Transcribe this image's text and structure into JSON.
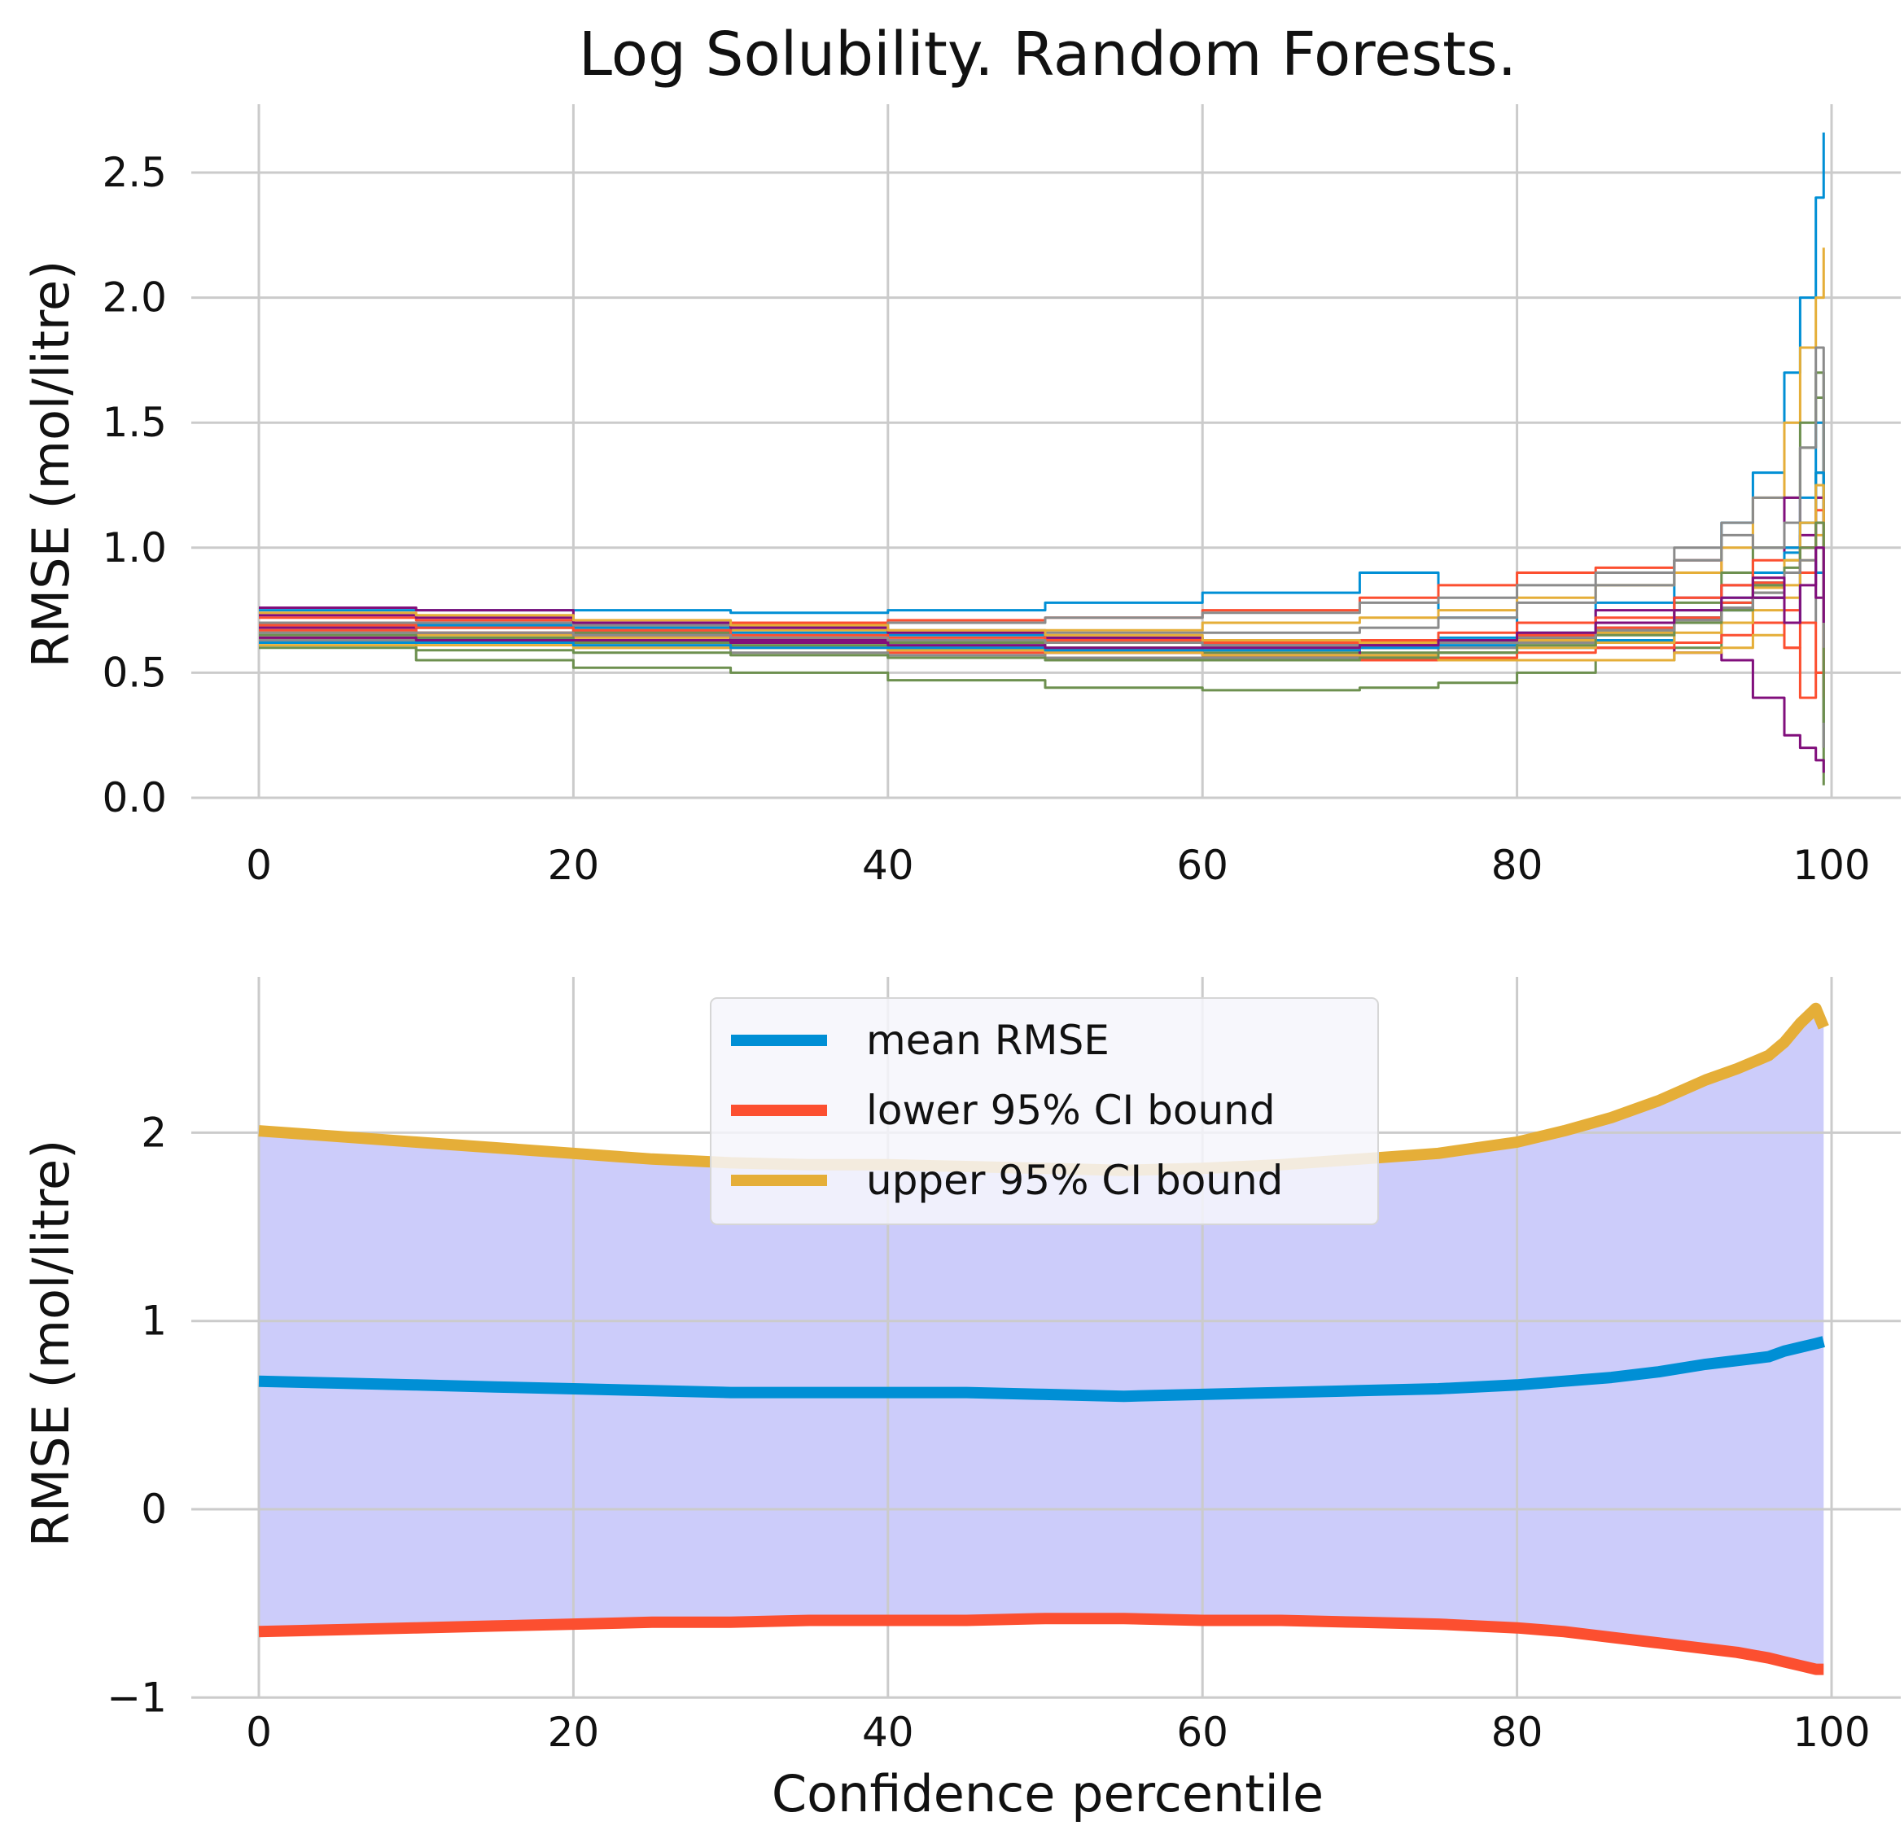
{
  "title": "Log Solubility. Random Forests.",
  "chart_data": [
    {
      "type": "line",
      "panel": "top",
      "xlabel": "",
      "ylabel": "RMSE (mol/litre)",
      "xlim": [
        -5,
        103
      ],
      "ylim": [
        -0.05,
        2.6
      ],
      "xticks": [
        0,
        20,
        40,
        60,
        80,
        100
      ],
      "yticks": [
        0.0,
        0.5,
        1.0,
        1.5,
        2.0,
        2.5
      ],
      "ytick_labels": [
        "0.0",
        "0.5",
        "1.0",
        "1.5",
        "2.0",
        "2.5"
      ],
      "grid": true,
      "legend": "none",
      "x": [
        0,
        10,
        20,
        30,
        40,
        50,
        60,
        70,
        75,
        80,
        85,
        90,
        93,
        95,
        97,
        98,
        99,
        99.5
      ],
      "series": [
        {
          "color": "#008fd5",
          "values": [
            0.75,
            0.75,
            0.75,
            0.74,
            0.75,
            0.78,
            0.82,
            0.9,
            0.72,
            0.7,
            0.78,
            0.95,
            1.1,
            1.3,
            1.7,
            2.0,
            2.4,
            2.66
          ]
        },
        {
          "color": "#fc4f30",
          "values": [
            0.72,
            0.71,
            0.7,
            0.7,
            0.71,
            0.72,
            0.75,
            0.8,
            0.85,
            0.9,
            0.92,
            0.95,
            0.9,
            0.8,
            0.6,
            0.4,
            0.5,
            0.3
          ]
        },
        {
          "color": "#e5ae38",
          "values": [
            0.7,
            0.69,
            0.68,
            0.67,
            0.66,
            0.67,
            0.7,
            0.72,
            0.75,
            0.8,
            0.85,
            0.9,
            1.0,
            1.2,
            1.5,
            1.8,
            2.0,
            2.2
          ]
        },
        {
          "color": "#6d904f",
          "values": [
            0.62,
            0.55,
            0.52,
            0.5,
            0.47,
            0.44,
            0.43,
            0.44,
            0.46,
            0.5,
            0.55,
            0.6,
            0.7,
            0.8,
            1.0,
            1.4,
            1.6,
            0.05
          ]
        },
        {
          "color": "#8b8b8b",
          "values": [
            0.68,
            0.68,
            0.67,
            0.68,
            0.7,
            0.72,
            0.74,
            0.78,
            0.8,
            0.85,
            0.9,
            1.0,
            1.1,
            1.2,
            1.0,
            0.7,
            1.3,
            0.3
          ]
        },
        {
          "color": "#810f7c",
          "values": [
            0.76,
            0.75,
            0.66,
            0.64,
            0.63,
            0.62,
            0.61,
            0.6,
            0.62,
            0.65,
            0.6,
            0.58,
            0.55,
            0.4,
            0.25,
            0.2,
            0.15,
            0.1
          ]
        },
        {
          "color": "#008fd5",
          "values": [
            0.66,
            0.64,
            0.62,
            0.6,
            0.56,
            0.55,
            0.56,
            0.57,
            0.58,
            0.6,
            0.63,
            0.7,
            0.75,
            0.8,
            1.0,
            1.2,
            1.5,
            0.4
          ]
        },
        {
          "color": "#fc4f30",
          "values": [
            0.64,
            0.63,
            0.62,
            0.6,
            0.58,
            0.56,
            0.55,
            0.55,
            0.56,
            0.58,
            0.6,
            0.62,
            0.65,
            0.7,
            0.75,
            0.9,
            1.1,
            0.6
          ]
        },
        {
          "color": "#e5ae38",
          "values": [
            0.66,
            0.65,
            0.64,
            0.62,
            0.6,
            0.58,
            0.57,
            0.56,
            0.55,
            0.55,
            0.55,
            0.58,
            0.6,
            0.65,
            0.8,
            1.0,
            1.2,
            0.7
          ]
        },
        {
          "color": "#6d904f",
          "values": [
            0.7,
            0.68,
            0.66,
            0.64,
            0.62,
            0.6,
            0.58,
            0.58,
            0.6,
            0.64,
            0.7,
            0.78,
            0.9,
            1.0,
            1.2,
            1.5,
            1.7,
            0.2
          ]
        },
        {
          "color": "#8b8b8b",
          "values": [
            0.63,
            0.62,
            0.6,
            0.58,
            0.57,
            0.56,
            0.56,
            0.57,
            0.6,
            0.62,
            0.66,
            0.7,
            0.75,
            0.85,
            0.9,
            1.0,
            1.1,
            0.5
          ]
        },
        {
          "color": "#810f7c",
          "values": [
            0.68,
            0.66,
            0.65,
            0.63,
            0.6,
            0.58,
            0.57,
            0.6,
            0.63,
            0.7,
            0.75,
            0.8,
            0.85,
            0.9,
            1.2,
            1.0,
            0.8,
            0.9
          ]
        },
        {
          "color": "#008fd5",
          "values": [
            0.7,
            0.69,
            0.68,
            0.66,
            0.65,
            0.64,
            0.63,
            0.63,
            0.64,
            0.66,
            0.7,
            0.75,
            0.8,
            0.9,
            0.7,
            1.1,
            0.9,
            1.0
          ]
        },
        {
          "color": "#fc4f30",
          "values": [
            0.67,
            0.66,
            0.65,
            0.64,
            0.63,
            0.62,
            0.62,
            0.63,
            0.66,
            0.7,
            0.72,
            0.8,
            0.85,
            0.95,
            0.6,
            0.7,
            0.5,
            0.8
          ]
        },
        {
          "color": "#e5ae38",
          "values": [
            0.61,
            0.61,
            0.6,
            0.6,
            0.59,
            0.58,
            0.57,
            0.57,
            0.58,
            0.6,
            0.62,
            0.66,
            0.7,
            0.75,
            0.85,
            0.95,
            1.05,
            0.6
          ]
        },
        {
          "color": "#6d904f",
          "values": [
            0.65,
            0.64,
            0.62,
            0.61,
            0.6,
            0.6,
            0.6,
            0.6,
            0.62,
            0.64,
            0.68,
            0.72,
            0.78,
            0.85,
            0.95,
            1.1,
            1.3,
            0.5
          ]
        },
        {
          "color": "#8b8b8b",
          "values": [
            0.7,
            0.7,
            0.69,
            0.68,
            0.67,
            0.66,
            0.66,
            0.68,
            0.72,
            0.78,
            0.85,
            0.95,
            1.05,
            1.0,
            1.1,
            1.4,
            1.8,
            0.2
          ]
        },
        {
          "color": "#810f7c",
          "values": [
            0.73,
            0.72,
            0.7,
            0.68,
            0.66,
            0.64,
            0.62,
            0.61,
            0.62,
            0.64,
            0.68,
            0.72,
            0.76,
            0.8,
            0.9,
            1.05,
            1.2,
            0.8
          ]
        },
        {
          "color": "#008fd5",
          "values": [
            0.62,
            0.62,
            0.61,
            0.6,
            0.6,
            0.59,
            0.59,
            0.6,
            0.61,
            0.63,
            0.67,
            0.72,
            0.78,
            0.86,
            0.98,
            1.1,
            1.3,
            0.7
          ]
        },
        {
          "color": "#fc4f30",
          "values": [
            0.69,
            0.68,
            0.67,
            0.65,
            0.64,
            0.63,
            0.62,
            0.62,
            0.63,
            0.65,
            0.68,
            0.72,
            0.78,
            0.86,
            0.9,
            1.0,
            1.15,
            0.4
          ]
        },
        {
          "color": "#e5ae38",
          "values": [
            0.74,
            0.73,
            0.71,
            0.69,
            0.67,
            0.65,
            0.63,
            0.62,
            0.62,
            0.63,
            0.66,
            0.7,
            0.76,
            0.84,
            0.95,
            1.1,
            1.25,
            0.9
          ]
        },
        {
          "color": "#6d904f",
          "values": [
            0.6,
            0.59,
            0.58,
            0.57,
            0.56,
            0.55,
            0.55,
            0.56,
            0.58,
            0.61,
            0.65,
            0.7,
            0.75,
            0.82,
            0.92,
            1.0,
            1.1,
            0.3
          ]
        },
        {
          "color": "#8b8b8b",
          "values": [
            0.66,
            0.66,
            0.65,
            0.64,
            0.63,
            0.62,
            0.61,
            0.61,
            0.62,
            0.64,
            0.67,
            0.71,
            0.76,
            0.82,
            0.9,
            0.95,
            1.0,
            0.6
          ]
        },
        {
          "color": "#810f7c",
          "values": [
            0.64,
            0.63,
            0.63,
            0.62,
            0.61,
            0.6,
            0.6,
            0.61,
            0.63,
            0.66,
            0.7,
            0.75,
            0.8,
            0.88,
            0.7,
            0.85,
            1.0,
            0.7
          ]
        }
      ]
    },
    {
      "type": "line",
      "panel": "bottom",
      "xlabel": "Confidence percentile",
      "ylabel": "RMSE (mol/litre)",
      "xlim": [
        -5,
        103
      ],
      "ylim": [
        -1,
        2.8
      ],
      "xticks": [
        0,
        20,
        40,
        60,
        80,
        100
      ],
      "yticks": [
        -1,
        0,
        1,
        2
      ],
      "ytick_labels": [
        "−1",
        "0",
        "1",
        "2"
      ],
      "grid": true,
      "legend": "top-center",
      "fill_between": {
        "lower": "lower 95% CI bound",
        "upper": "upper 95% CI bound",
        "color": "#ccccfa"
      },
      "x": [
        0,
        5,
        10,
        15,
        20,
        25,
        30,
        35,
        40,
        45,
        50,
        55,
        60,
        65,
        70,
        75,
        80,
        83,
        86,
        89,
        92,
        94,
        96,
        97,
        98,
        99,
        99.5
      ],
      "series": [
        {
          "name": "mean RMSE",
          "color": "#008fd5",
          "values": [
            0.68,
            0.67,
            0.66,
            0.65,
            0.64,
            0.63,
            0.62,
            0.62,
            0.62,
            0.62,
            0.61,
            0.6,
            0.61,
            0.62,
            0.63,
            0.64,
            0.66,
            0.68,
            0.7,
            0.73,
            0.77,
            0.79,
            0.81,
            0.84,
            0.86,
            0.88,
            0.89
          ]
        },
        {
          "name": "lower 95% CI bound",
          "color": "#fc4f30",
          "values": [
            -0.65,
            -0.64,
            -0.63,
            -0.62,
            -0.61,
            -0.6,
            -0.6,
            -0.59,
            -0.59,
            -0.59,
            -0.58,
            -0.58,
            -0.59,
            -0.59,
            -0.6,
            -0.61,
            -0.63,
            -0.65,
            -0.68,
            -0.71,
            -0.74,
            -0.76,
            -0.79,
            -0.81,
            -0.83,
            -0.85,
            -0.85
          ]
        },
        {
          "name": "upper 95% CI bound",
          "color": "#e5ae38",
          "values": [
            2.01,
            1.98,
            1.95,
            1.92,
            1.89,
            1.86,
            1.84,
            1.83,
            1.83,
            1.82,
            1.81,
            1.8,
            1.81,
            1.83,
            1.86,
            1.89,
            1.95,
            2.01,
            2.08,
            2.17,
            2.28,
            2.34,
            2.41,
            2.48,
            2.58,
            2.66,
            2.56
          ]
        }
      ]
    }
  ]
}
